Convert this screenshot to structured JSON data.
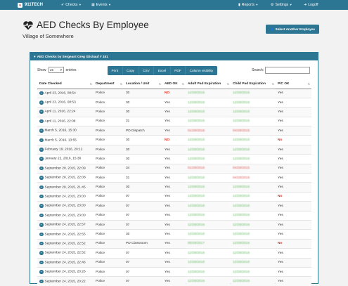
{
  "nav": {
    "brand": "911TECH",
    "brand_logo_text": "9",
    "checks": "Checks",
    "events": "Events",
    "reports": "Reports",
    "settings": "Settings",
    "logoff": "Logoff"
  },
  "header": {
    "title": "AED Checks By Employee",
    "subtitle": "Village of Somewhere",
    "select_button": "Select Another Employee"
  },
  "panel": {
    "heading": "AED Checks by Sergeant Greg Glickauf # 151",
    "show_label": "Show",
    "show_value": "25",
    "entries_label": "entries",
    "search_label": "Search:",
    "search_value": "",
    "buttons": [
      "Print",
      "Copy",
      "CSV",
      "Excel",
      "PDF",
      "Column visibility"
    ]
  },
  "table": {
    "columns": [
      "Date Checked",
      "Department",
      "Location / Unit",
      "AED OK",
      "Adult Pad Expiration",
      "Child Pad Expiration",
      "P/C OK"
    ],
    "rows": [
      {
        "date": "April 23, 2016, 08:54",
        "dept": "Police",
        "loc": "30",
        "aed": "NO",
        "adult": "12/28/2016",
        "child": "12/28/2016",
        "pc": "Yes"
      },
      {
        "date": "April 23, 2016, 08:53",
        "dept": "Police",
        "loc": "30",
        "aed": "Yes",
        "adult": "12/28/2016",
        "child": "12/28/2016",
        "pc": "Yes"
      },
      {
        "date": "April 11, 2016, 22:24",
        "dept": "Police",
        "loc": "30",
        "aed": "Yes",
        "adult": "12/28/2016",
        "child": "12/28/2016",
        "pc": "Yes"
      },
      {
        "date": "April 11, 2016, 22:08",
        "dept": "Police",
        "loc": "31",
        "aed": "Yes",
        "adult": "12/28/2016",
        "child": "12/28/2016",
        "pc": "Yes"
      },
      {
        "date": "March 5, 2016, 15:30",
        "dept": "Police",
        "loc": "PD Dispatch",
        "aed": "Yes",
        "adult": "01/28/2016",
        "child": "04/28/2015",
        "pc": "Yes"
      },
      {
        "date": "March 5, 2016, 13:55",
        "dept": "Police",
        "loc": "30",
        "aed": "NO",
        "adult": "12/28/2016",
        "child": "12/28/2016",
        "pc": "No"
      },
      {
        "date": "February 19, 2016, 20:12",
        "dept": "Police",
        "loc": "30",
        "aed": "Yes",
        "adult": "12/28/2016",
        "child": "12/28/2016",
        "pc": "Yes"
      },
      {
        "date": "January 22, 2016, 15:36",
        "dept": "Police",
        "loc": "30",
        "aed": "Yes",
        "adult": "12/28/2016",
        "child": "12/28/2016",
        "pc": "Yes"
      },
      {
        "date": "September 28, 2015, 22:09",
        "dept": "Police",
        "loc": "34",
        "aed": "Yes",
        "adult": "01/28/2016",
        "child": "04/28/2015",
        "pc": "Yes"
      },
      {
        "date": "September 28, 2015, 22:08",
        "dept": "Police",
        "loc": "31",
        "aed": "Yes",
        "adult": "12/28/2016",
        "child": "04/28/2015",
        "pc": "Yes"
      },
      {
        "date": "September 28, 2015, 21:45",
        "dept": "Police",
        "loc": "30",
        "aed": "Yes",
        "adult": "12/28/2016",
        "child": "12/28/2016",
        "pc": "Yes"
      },
      {
        "date": "September 24, 2015, 23:00",
        "dept": "Police",
        "loc": "07",
        "aed": "Yes",
        "adult": "12/28/2016",
        "child": "12/28/2016",
        "pc": "No"
      },
      {
        "date": "September 24, 2015, 23:00",
        "dept": "Police",
        "loc": "07",
        "aed": "Yes",
        "adult": "12/28/2016",
        "child": "12/28/2016",
        "pc": "Yes"
      },
      {
        "date": "September 24, 2015, 23:00",
        "dept": "Police",
        "loc": "07",
        "aed": "Yes",
        "adult": "12/28/2016",
        "child": "12/28/2016",
        "pc": "Yes"
      },
      {
        "date": "September 24, 2015, 22:57",
        "dept": "Police",
        "loc": "07",
        "aed": "Yes",
        "adult": "12/28/2016",
        "child": "12/28/2016",
        "pc": "Yes"
      },
      {
        "date": "September 24, 2015, 22:55",
        "dept": "Police",
        "loc": "30",
        "aed": "Yes",
        "adult": "12/28/2016",
        "child": "12/28/2016",
        "pc": "Yes"
      },
      {
        "date": "September 24, 2015, 22:52",
        "dept": "Police",
        "loc": "PD Classroom",
        "aed": "Yes",
        "adult": "05/28/2017",
        "child": "12/28/2016",
        "pc": "No"
      },
      {
        "date": "September 24, 2015, 22:52",
        "dept": "Police",
        "loc": "07",
        "aed": "Yes",
        "adult": "12/28/2016",
        "child": "12/28/2016",
        "pc": "Yes"
      },
      {
        "date": "September 24, 2015, 22:46",
        "dept": "Police",
        "loc": "07",
        "aed": "Yes",
        "adult": "12/28/2016",
        "child": "12/28/2016",
        "pc": "Yes"
      },
      {
        "date": "September 24, 2015, 20:26",
        "dept": "Police",
        "loc": "07",
        "aed": "Yes",
        "adult": "12/28/2016",
        "child": "12/28/2016",
        "pc": "Yes"
      },
      {
        "date": "September 24, 2015, 20:22",
        "dept": "Police",
        "loc": "07",
        "aed": "Yes",
        "adult": "12/28/2016",
        "child": "12/28/2016",
        "pc": "Yes"
      }
    ]
  },
  "colors": {
    "primary": "#2d7693",
    "no": "#d9291c",
    "valid_date": "#5cb85c",
    "expired_date": "#d9534f"
  }
}
